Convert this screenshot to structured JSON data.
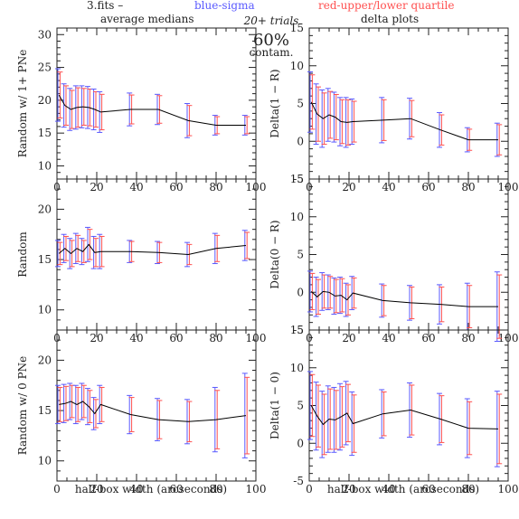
{
  "header": {
    "file_label": "3.fits  –",
    "blue_label": "blue-sigma",
    "red_label": "red-upper/lower quartile",
    "trials_label": "20+ trials",
    "contam_value": "60%",
    "contam_label": "contam.",
    "left_column_title": "average medians",
    "right_column_title": "delta plots",
    "colors": {
      "text": "#222222",
      "blue": "#5a5aff",
      "red": "#ff5050",
      "line": "#000000"
    }
  },
  "axes": {
    "xlabel": "half-box width (arcseconds)"
  },
  "chart_data": [
    {
      "type": "line",
      "id": "avg-1pne",
      "ylabel": "Random w/ 1+ PNe",
      "xlim": [
        0,
        100
      ],
      "ylim": [
        8,
        31
      ],
      "xticks": [
        0,
        20,
        40,
        60,
        80,
        100
      ],
      "yticks": [
        10,
        15,
        20,
        25,
        30
      ],
      "x": [
        1,
        4,
        7,
        10,
        13,
        16,
        19,
        22,
        37,
        51,
        66,
        80,
        95
      ],
      "y": [
        20.8,
        19.2,
        18.6,
        18.9,
        19.0,
        18.9,
        18.6,
        18.2,
        18.6,
        18.6,
        16.9,
        16.2,
        16.2
      ],
      "sigma": [
        4.0,
        3.3,
        3.2,
        3.3,
        3.2,
        3.2,
        3.1,
        3.1,
        2.5,
        2.3,
        2.6,
        1.5,
        1.5
      ],
      "quartile": [
        3.5,
        3.0,
        2.9,
        3.0,
        2.8,
        2.8,
        2.7,
        2.7,
        2.2,
        2.1,
        2.3,
        1.3,
        1.3
      ]
    },
    {
      "type": "line",
      "id": "delta-1r",
      "ylabel": "Delta(1 − R)",
      "xlim": [
        0,
        100
      ],
      "ylim": [
        -5,
        15
      ],
      "xticks": [
        0,
        20,
        40,
        60,
        80,
        100
      ],
      "yticks": [
        -5,
        0,
        5,
        10,
        15
      ],
      "x": [
        1,
        4,
        7,
        10,
        13,
        16,
        19,
        22,
        37,
        51,
        66,
        80,
        95
      ],
      "y": [
        5.2,
        3.6,
        3.0,
        3.5,
        3.2,
        2.6,
        2.5,
        2.6,
        2.8,
        3.0,
        1.5,
        0.2,
        0.2
      ],
      "sigma": [
        4.0,
        4.0,
        3.8,
        3.5,
        3.3,
        3.2,
        3.3,
        3.0,
        3.0,
        2.7,
        2.3,
        1.6,
        2.2
      ],
      "quartile": [
        3.6,
        3.6,
        3.4,
        3.1,
        3.0,
        2.9,
        3.0,
        2.7,
        2.7,
        2.4,
        2.0,
        1.4,
        2.0
      ]
    },
    {
      "type": "line",
      "id": "avg-random",
      "ylabel": "Random",
      "xlim": [
        0,
        100
      ],
      "ylim": [
        8,
        23
      ],
      "xticks": [
        0,
        20,
        40,
        60,
        80,
        100
      ],
      "yticks": [
        10,
        15,
        20
      ],
      "x": [
        1,
        4,
        7,
        10,
        13,
        16,
        19,
        22,
        37,
        51,
        66,
        80,
        95
      ],
      "y": [
        15.6,
        16.1,
        15.6,
        16.1,
        15.8,
        16.5,
        15.7,
        15.8,
        15.8,
        15.7,
        15.5,
        16.1,
        16.4
      ],
      "sigma": [
        1.3,
        1.4,
        1.5,
        1.5,
        1.3,
        1.7,
        1.6,
        1.7,
        1.1,
        1.1,
        1.2,
        1.5,
        1.5
      ],
      "quartile": [
        1.1,
        1.2,
        1.3,
        1.3,
        1.1,
        1.5,
        1.4,
        1.5,
        1.0,
        1.0,
        1.0,
        1.3,
        1.3
      ]
    },
    {
      "type": "line",
      "id": "delta-0r",
      "ylabel": "Delta(0 − R)",
      "xlim": [
        0,
        100
      ],
      "ylim": [
        -5,
        15
      ],
      "xticks": [
        0,
        20,
        40,
        60,
        80,
        100
      ],
      "yticks": [
        -5,
        0,
        5,
        10,
        15
      ],
      "x": [
        1,
        4,
        7,
        10,
        13,
        16,
        19,
        22,
        37,
        51,
        66,
        80,
        95
      ],
      "y": [
        0.1,
        -0.6,
        0.1,
        0.0,
        -0.5,
        -0.4,
        -1.0,
        -0.1,
        -1.1,
        -1.4,
        -1.6,
        -1.9,
        -1.9
      ],
      "sigma": [
        2.7,
        2.6,
        2.5,
        2.3,
        2.4,
        2.4,
        2.2,
        2.2,
        2.2,
        2.3,
        2.6,
        3.1,
        4.6
      ],
      "quartile": [
        2.4,
        2.3,
        2.2,
        2.1,
        2.2,
        2.2,
        2.0,
        2.0,
        2.0,
        2.1,
        2.3,
        2.8,
        4.2
      ]
    },
    {
      "type": "line",
      "id": "avg-0pne",
      "ylabel": "Random w/ 0 PNe",
      "xlim": [
        0,
        100
      ],
      "ylim": [
        8,
        23
      ],
      "xticks": [
        0,
        20,
        40,
        60,
        80,
        100
      ],
      "yticks": [
        10,
        15,
        20
      ],
      "x": [
        1,
        4,
        7,
        10,
        13,
        16,
        19,
        22,
        37,
        51,
        66,
        80,
        95
      ],
      "y": [
        15.6,
        15.7,
        15.9,
        15.6,
        15.9,
        15.4,
        14.7,
        15.6,
        14.6,
        14.1,
        13.9,
        14.1,
        14.5
      ],
      "sigma": [
        1.9,
        1.9,
        1.8,
        1.9,
        1.8,
        1.8,
        1.6,
        1.9,
        1.9,
        2.1,
        2.2,
        3.2,
        4.2
      ],
      "quartile": [
        1.7,
        1.7,
        1.6,
        1.7,
        1.6,
        1.6,
        1.4,
        1.7,
        1.7,
        1.9,
        2.0,
        2.9,
        3.8
      ]
    },
    {
      "type": "line",
      "id": "delta-10",
      "ylabel": "Delta(1 − 0)",
      "xlim": [
        0,
        100
      ],
      "ylim": [
        -5,
        15
      ],
      "xticks": [
        0,
        20,
        40,
        60,
        80,
        100
      ],
      "yticks": [
        -5,
        0,
        5,
        10,
        15
      ],
      "x": [
        1,
        4,
        7,
        10,
        13,
        16,
        19,
        22,
        37,
        51,
        66,
        80,
        95
      ],
      "y": [
        5.0,
        3.6,
        2.5,
        3.2,
        3.1,
        3.5,
        4.0,
        2.6,
        3.9,
        4.4,
        3.2,
        2.0,
        1.9
      ],
      "sigma": [
        4.5,
        4.5,
        4.4,
        4.4,
        4.3,
        4.4,
        4.2,
        4.2,
        3.2,
        3.6,
        3.4,
        3.9,
        5.0
      ],
      "quartile": [
        4.1,
        4.1,
        4.0,
        4.0,
        3.9,
        4.0,
        3.8,
        3.8,
        2.9,
        3.3,
        3.1,
        3.5,
        4.6
      ]
    }
  ]
}
